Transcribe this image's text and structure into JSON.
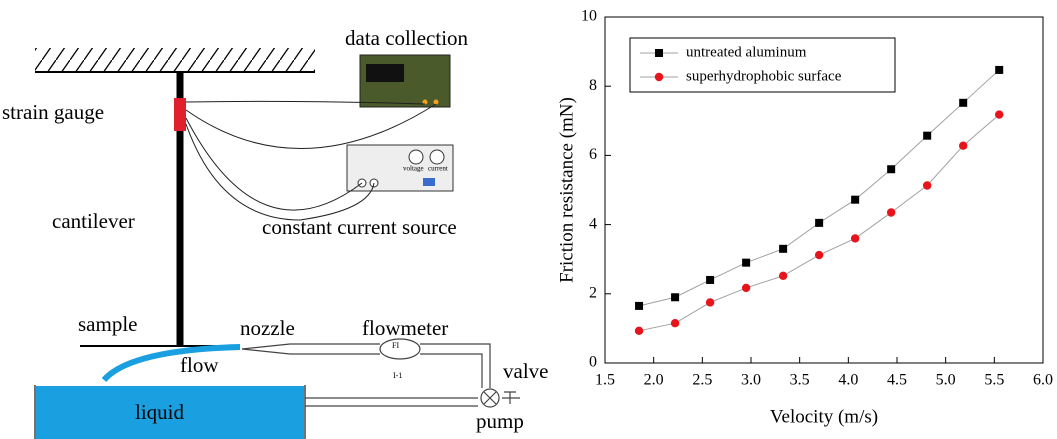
{
  "diagram": {
    "labels": {
      "data_collection": "data collection",
      "strain_gauge": "strain gauge",
      "constant_current_source": "constant current source",
      "cantilever": "cantilever",
      "sample": "sample",
      "nozzle": "nozzle",
      "flowmeter": "flowmeter",
      "flow": "flow",
      "valve": "valve",
      "liquid": "liquid",
      "pump": "pump",
      "voltage": "voltage",
      "current": "current",
      "flowmeter_tag": "FI",
      "flowmeter_id": "I-1"
    }
  },
  "chart_data": {
    "type": "line",
    "x_label": "Velocity (m/s)",
    "y_label": "Friction resistance (mN)",
    "x": [
      1.85,
      2.22,
      2.58,
      2.95,
      3.33,
      3.7,
      4.07,
      4.44,
      4.81,
      5.18,
      5.55
    ],
    "series": [
      {
        "name": "untreated aluminum",
        "color": "#000000",
        "marker": "square",
        "values": [
          1.65,
          1.9,
          2.4,
          2.9,
          3.3,
          4.05,
          4.72,
          5.6,
          6.57,
          7.52,
          8.47
        ]
      },
      {
        "name": "superhydrophobic surface",
        "color": "#e8141b",
        "marker": "circle",
        "values": [
          0.93,
          1.15,
          1.75,
          2.17,
          2.52,
          3.12,
          3.6,
          4.35,
          5.13,
          6.28,
          7.18
        ]
      }
    ],
    "line_color": "#a0a0a0",
    "xlim": [
      1.5,
      6.0
    ],
    "xticks": [
      1.5,
      {
        "value": 2,
        "label": "2.0"
      },
      2.5,
      {
        "value": 3,
        "label": "3.0"
      },
      3.5,
      {
        "value": 4,
        "label": "4.0"
      },
      4.5,
      {
        "value": 5,
        "label": "5.0"
      },
      5.5,
      {
        "value": 6,
        "label": "6.0"
      }
    ],
    "ylim": [
      0,
      10
    ],
    "yticks": [
      0,
      2,
      4,
      6,
      8,
      10
    ],
    "legend": "upper left"
  }
}
